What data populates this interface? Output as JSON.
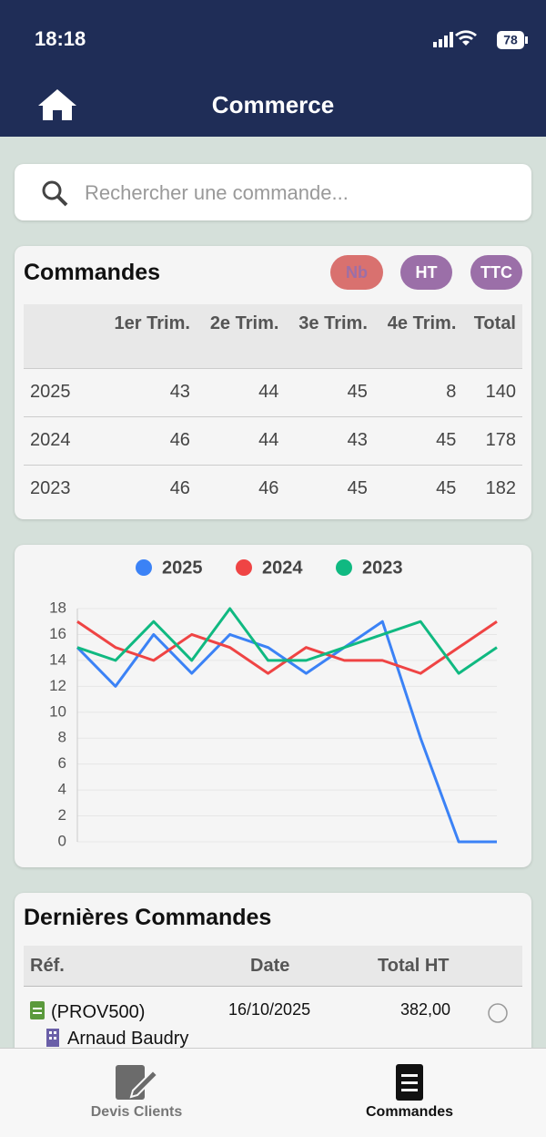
{
  "status_bar": {
    "time": "18:18",
    "battery": "78"
  },
  "header": {
    "title": "Commerce"
  },
  "search": {
    "placeholder": "Rechercher une commande..."
  },
  "orders_summary": {
    "title": "Commandes",
    "toggles": [
      "Nb",
      "HT",
      "TTC"
    ],
    "table": {
      "headers": [
        "1er Trim.",
        "2e Trim.",
        "3e Trim.",
        "4e Trim.",
        "Total"
      ],
      "rows": [
        [
          "2025",
          "43",
          "44",
          "45",
          "8",
          "140"
        ],
        [
          "2024",
          "46",
          "44",
          "43",
          "45",
          "178"
        ],
        [
          "2023",
          "46",
          "46",
          "45",
          "45",
          "182"
        ]
      ]
    }
  },
  "chart_data": {
    "type": "line",
    "categories": [
      null,
      null,
      null,
      null,
      null,
      null,
      null,
      null,
      null,
      null,
      null,
      null
    ],
    "series": [
      {
        "name": "2025",
        "color": "#3b82f6",
        "values": [
          15,
          12,
          16,
          13,
          16,
          15,
          13,
          15,
          17,
          8,
          0,
          0
        ]
      },
      {
        "name": "2024",
        "color": "#ef4444",
        "values": [
          17,
          15,
          14,
          16,
          15,
          13,
          15,
          14,
          14,
          13,
          15,
          17
        ]
      },
      {
        "name": "2023",
        "color": "#10b981",
        "values": [
          15,
          14,
          17,
          14,
          18,
          14,
          14,
          15,
          16,
          17,
          13,
          15
        ]
      }
    ],
    "ylim": [
      0,
      18
    ],
    "yticks": [
      0,
      2,
      4,
      6,
      8,
      10,
      12,
      14,
      16,
      18
    ],
    "grid": true,
    "legend": "top"
  },
  "latest_orders": {
    "title": "Dernières Commandes",
    "headers": [
      "Réf.",
      "Date",
      "Total HT"
    ],
    "rows": [
      {
        "ref": "(PROV500)",
        "client": "Arnaud Baudry",
        "date": "16/10/2025",
        "total": "382,00"
      }
    ]
  },
  "tab_bar": {
    "tabs": [
      "Devis Clients",
      "Commandes"
    ]
  }
}
